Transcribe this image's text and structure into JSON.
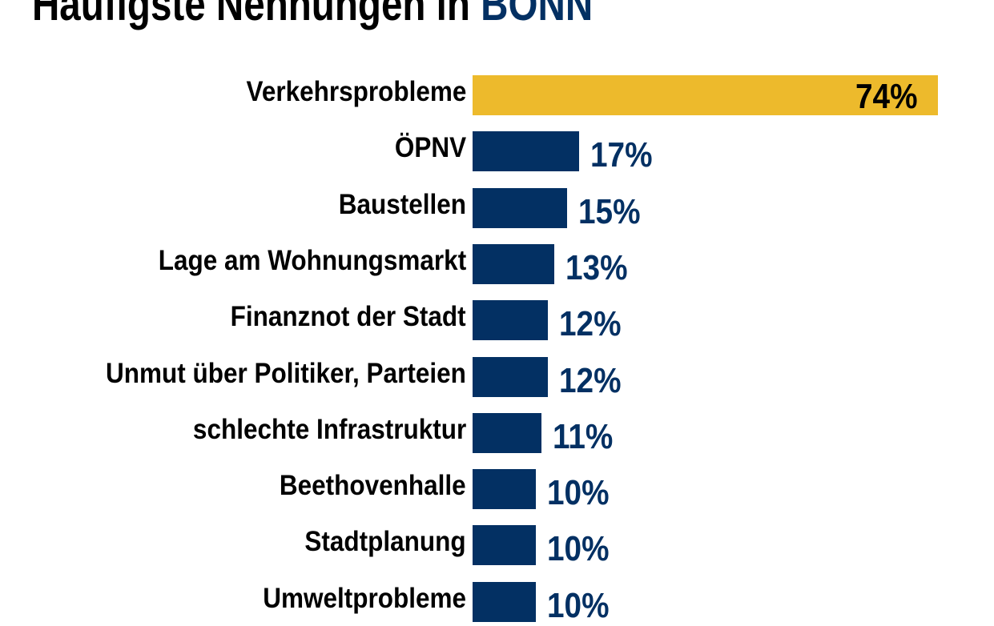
{
  "chart_data": {
    "type": "bar",
    "orientation": "horizontal",
    "title": "Häufigste Nennungen in",
    "title_highlight": "BONN",
    "categories": [
      "Verkehrsprobleme",
      "ÖPNV",
      "Baustellen",
      "Lage am Wohnungsmarkt",
      "Finanznot der Stadt",
      "Unmut über Politiker, Parteien",
      "schlechte Infrastruktur",
      "Beethovenhalle",
      "Stadtplanung",
      "Umweltprobleme"
    ],
    "values": [
      74,
      17,
      15,
      13,
      12,
      12,
      11,
      10,
      10,
      10
    ],
    "value_labels": [
      "74%",
      "17%",
      "15%",
      "13%",
      "12%",
      "12%",
      "11%",
      "10%",
      "10%",
      "10%"
    ],
    "unit": "%",
    "grid": false,
    "colors": {
      "highlight": "#EDBA2C",
      "bar": "#033063",
      "highlight_label": "#000000",
      "label": "#033063"
    }
  }
}
